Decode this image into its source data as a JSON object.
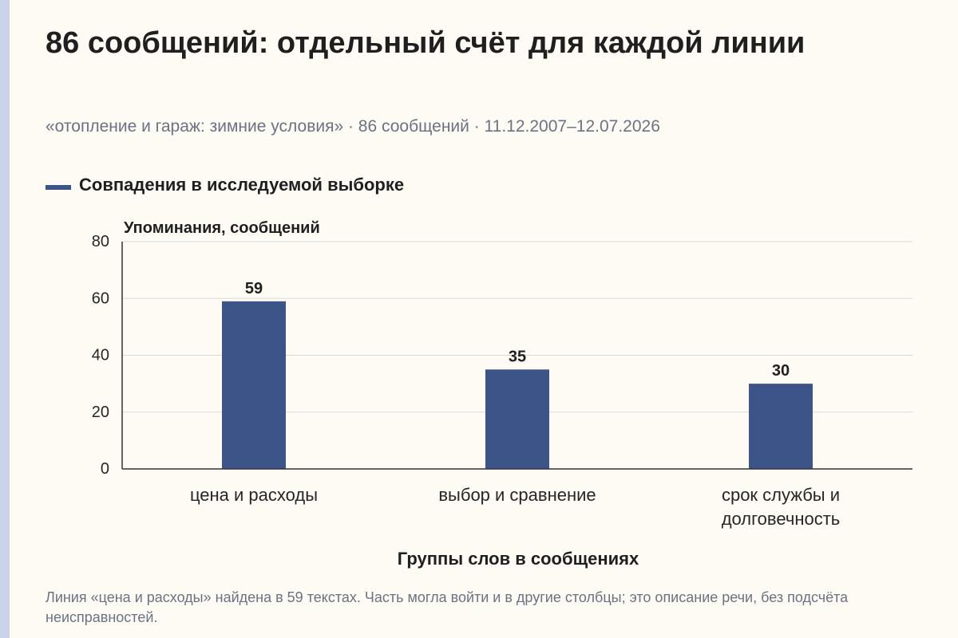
{
  "colors": {
    "bar": "#3d5488",
    "grid": "#d9d9d9",
    "axis": "#333333",
    "background": "#fdfbf3",
    "accent_strip": "#c9d3e9"
  },
  "header": {
    "title": "86 сообщений: отдельный счёт для каждой линии",
    "subtitle": "«отопление и гараж: зимние условия» · 86 сообщений · 11.12.2007–12.07.2026"
  },
  "chart_data": {
    "type": "bar",
    "categories": [
      [
        "цена и расходы"
      ],
      [
        "выбор и сравнение"
      ],
      [
        "срок службы и",
        "долговечность"
      ]
    ],
    "series": [
      {
        "name": "Совпадения в исследуемой выборке",
        "values": [
          59,
          35,
          30
        ]
      }
    ],
    "ylabel": "Упоминания, сообщений",
    "xlabel": "Группы слов в сообщениях",
    "ylim": [
      0,
      80
    ],
    "yticks": [
      0,
      20,
      40,
      60,
      80
    ],
    "grid": true,
    "legend_position": "top-left",
    "data_labels": true
  },
  "footnote": "Линия «цена и расходы» найдена в 59 текстах. Часть могла войти и в другие столбцы; это описание речи, без подсчёта неисправностей."
}
